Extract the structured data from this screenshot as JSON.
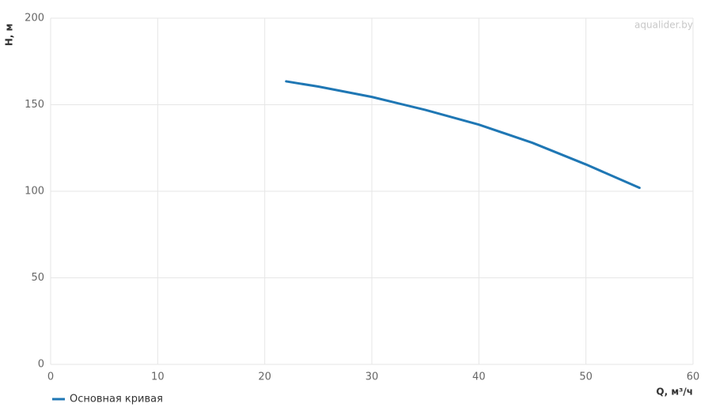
{
  "chart_data": {
    "type": "line",
    "watermark": "aqualider.by",
    "x_label": "Q, м³/ч",
    "y_label": "H, м",
    "x": [
      22,
      25,
      30,
      35,
      40,
      45,
      50,
      55
    ],
    "series": [
      {
        "name": "Основная кривая",
        "color": "#1f77b4",
        "values": [
          163.5,
          160.5,
          154.5,
          147,
          138.5,
          128,
          115.5,
          102
        ]
      }
    ],
    "xlim": [
      0,
      60
    ],
    "xticks": [
      0,
      10,
      20,
      30,
      40,
      50,
      60
    ],
    "ylim": [
      0,
      200
    ],
    "yticks": [
      0,
      50,
      100,
      150,
      200
    ],
    "grid": true,
    "legend": "bottom-left"
  }
}
